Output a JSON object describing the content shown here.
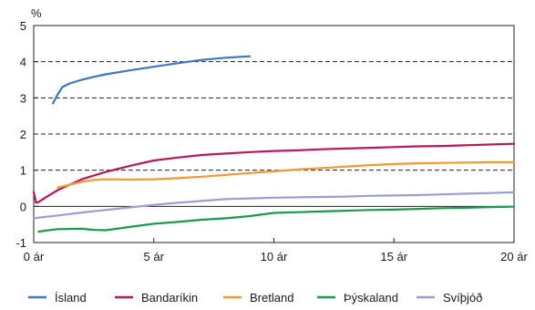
{
  "chart_data": {
    "type": "line",
    "ylabel": "%",
    "xlim": [
      0,
      20
    ],
    "ylim": [
      -1,
      5
    ],
    "x_ticks": [
      0,
      5,
      10,
      15,
      20
    ],
    "x_tick_labels": [
      "0 ár",
      "5 ár",
      "10 ár",
      "15 ár",
      "20 ár"
    ],
    "y_ticks": [
      -1,
      0,
      1,
      2,
      3,
      4,
      5
    ],
    "y_tick_labels": [
      "-1",
      "0",
      "1",
      "2",
      "3",
      "4",
      "5"
    ],
    "grid": "horizontal dashed",
    "legend_position": "bottom",
    "series": [
      {
        "name": "Ísland",
        "color": "#3b78c2",
        "points": [
          [
            0.8,
            2.85
          ],
          [
            1.0,
            3.1
          ],
          [
            1.2,
            3.3
          ],
          [
            1.5,
            3.4
          ],
          [
            2,
            3.5
          ],
          [
            2.5,
            3.58
          ],
          [
            3,
            3.65
          ],
          [
            4,
            3.76
          ],
          [
            5,
            3.86
          ],
          [
            6,
            3.96
          ],
          [
            7,
            4.05
          ],
          [
            8,
            4.11
          ],
          [
            9,
            4.15
          ]
        ]
      },
      {
        "name": "Bandaríkin",
        "color": "#b5195a",
        "points": [
          [
            0,
            0.4
          ],
          [
            0.1,
            0.1
          ],
          [
            0.2,
            0.12
          ],
          [
            0.5,
            0.25
          ],
          [
            1,
            0.45
          ],
          [
            1.5,
            0.6
          ],
          [
            2,
            0.75
          ],
          [
            3,
            0.95
          ],
          [
            4,
            1.12
          ],
          [
            5,
            1.27
          ],
          [
            6,
            1.35
          ],
          [
            7,
            1.42
          ],
          [
            8,
            1.46
          ],
          [
            9,
            1.5
          ],
          [
            10,
            1.53
          ],
          [
            11,
            1.55
          ],
          [
            12,
            1.58
          ],
          [
            13,
            1.6
          ],
          [
            14,
            1.62
          ],
          [
            15,
            1.64
          ],
          [
            16,
            1.66
          ],
          [
            17,
            1.67
          ],
          [
            18,
            1.69
          ],
          [
            19,
            1.71
          ],
          [
            20,
            1.73
          ]
        ]
      },
      {
        "name": "Bretland",
        "color": "#f29933",
        "points": [
          [
            1,
            0.52
          ],
          [
            1.5,
            0.6
          ],
          [
            2,
            0.68
          ],
          [
            2.5,
            0.73
          ],
          [
            3,
            0.75
          ],
          [
            4,
            0.74
          ],
          [
            5,
            0.75
          ],
          [
            6,
            0.78
          ],
          [
            7,
            0.82
          ],
          [
            8,
            0.87
          ],
          [
            9,
            0.92
          ],
          [
            10,
            0.97
          ],
          [
            11,
            1.02
          ],
          [
            12,
            1.06
          ],
          [
            13,
            1.1
          ],
          [
            14,
            1.14
          ],
          [
            15,
            1.17
          ],
          [
            16,
            1.19
          ],
          [
            17,
            1.2
          ],
          [
            18,
            1.21
          ],
          [
            19,
            1.22
          ],
          [
            20,
            1.22
          ]
        ]
      },
      {
        "name": "Þýskaland",
        "color": "#1a9a4f",
        "points": [
          [
            0.2,
            -0.7
          ],
          [
            0.5,
            -0.67
          ],
          [
            1,
            -0.63
          ],
          [
            2,
            -0.62
          ],
          [
            2.5,
            -0.65
          ],
          [
            3,
            -0.66
          ],
          [
            4,
            -0.57
          ],
          [
            5,
            -0.48
          ],
          [
            6,
            -0.43
          ],
          [
            7,
            -0.37
          ],
          [
            8,
            -0.33
          ],
          [
            9,
            -0.27
          ],
          [
            10,
            -0.18
          ],
          [
            11,
            -0.16
          ],
          [
            12,
            -0.14
          ],
          [
            13,
            -0.12
          ],
          [
            14,
            -0.1
          ],
          [
            15,
            -0.09
          ],
          [
            16,
            -0.07
          ],
          [
            17,
            -0.05
          ],
          [
            18,
            -0.04
          ],
          [
            19,
            -0.02
          ],
          [
            20,
            -0.01
          ]
        ]
      },
      {
        "name": "Svíþjóð",
        "color": "#9a9fd0",
        "points": [
          [
            0,
            -0.33
          ],
          [
            1,
            -0.25
          ],
          [
            2,
            -0.17
          ],
          [
            3,
            -0.1
          ],
          [
            4,
            -0.03
          ],
          [
            5,
            0.04
          ],
          [
            6,
            0.1
          ],
          [
            7,
            0.15
          ],
          [
            8,
            0.2
          ],
          [
            9,
            0.22
          ],
          [
            10,
            0.24
          ],
          [
            11,
            0.25
          ],
          [
            12,
            0.26
          ],
          [
            13,
            0.27
          ],
          [
            14,
            0.29
          ],
          [
            15,
            0.3
          ],
          [
            16,
            0.31
          ],
          [
            17,
            0.33
          ],
          [
            18,
            0.35
          ],
          [
            19,
            0.37
          ],
          [
            20,
            0.39
          ]
        ]
      }
    ]
  }
}
